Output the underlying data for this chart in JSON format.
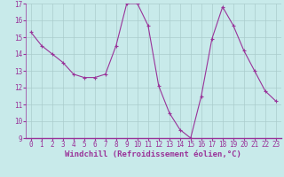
{
  "x": [
    0,
    1,
    2,
    3,
    4,
    5,
    6,
    7,
    8,
    9,
    10,
    11,
    12,
    13,
    14,
    15,
    16,
    17,
    18,
    19,
    20,
    21,
    22,
    23
  ],
  "y": [
    15.3,
    14.5,
    14.0,
    13.5,
    12.8,
    12.6,
    12.6,
    12.8,
    14.5,
    17.0,
    17.0,
    15.7,
    12.1,
    10.5,
    9.5,
    9.0,
    11.5,
    14.9,
    16.8,
    15.7,
    14.2,
    13.0,
    11.8,
    11.2
  ],
  "xlabel": "Windchill (Refroidissement éolien,°C)",
  "ylim": [
    9,
    17
  ],
  "xlim": [
    -0.5,
    23.5
  ],
  "yticks": [
    9,
    10,
    11,
    12,
    13,
    14,
    15,
    16,
    17
  ],
  "xticks": [
    0,
    1,
    2,
    3,
    4,
    5,
    6,
    7,
    8,
    9,
    10,
    11,
    12,
    13,
    14,
    15,
    16,
    17,
    18,
    19,
    20,
    21,
    22,
    23
  ],
  "line_color": "#993399",
  "marker": "+",
  "bg_color": "#c8eaea",
  "grid_color": "#aacccc",
  "label_color": "#993399",
  "tick_label_size": 5.5,
  "xlabel_size": 6.5
}
